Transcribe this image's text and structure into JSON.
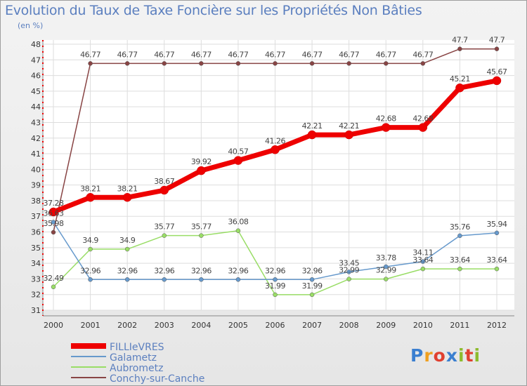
{
  "title": "Evolution du Taux de Taxe Foncière sur les Propriétés Non Bâties",
  "subtitle": "(en %)",
  "logo": [
    "P",
    "r",
    "o",
    "x",
    "i",
    "t",
    "i"
  ],
  "chart_data": {
    "type": "line",
    "x": [
      "2000",
      "2001",
      "2002",
      "2003",
      "2004",
      "2005",
      "2006",
      "2007",
      "2008",
      "2009",
      "2010",
      "2011",
      "2012"
    ],
    "ylim": [
      31,
      48
    ],
    "yticks": [
      31,
      32,
      33,
      34,
      35,
      36,
      37,
      38,
      39,
      40,
      41,
      42,
      43,
      44,
      45,
      46,
      47,
      48
    ],
    "grid": true,
    "legend_position": "bottom-left",
    "series": [
      {
        "name": "FILLIeVRES",
        "color": "#ee0000",
        "values": [
          37.28,
          38.21,
          38.21,
          38.67,
          39.92,
          40.57,
          41.26,
          42.21,
          42.21,
          42.68,
          42.68,
          45.21,
          45.67
        ],
        "labels": [
          "37.28",
          "38.21",
          "38.21",
          "38.67",
          "39.92",
          "40.57",
          "41.26",
          "42.21",
          "42.21",
          "42.68",
          "42.68",
          "45.21",
          "45.67"
        ]
      },
      {
        "name": "Galametz",
        "color": "#6699cc",
        "values": [
          36.63,
          32.96,
          32.96,
          32.96,
          32.96,
          32.96,
          32.96,
          32.96,
          33.45,
          33.78,
          34.11,
          35.76,
          35.94
        ],
        "labels": [
          "36.63",
          "32.96",
          "32.96",
          "32.96",
          "32.96",
          "32.96",
          "32.96",
          "32.96",
          "33.45",
          "33.78",
          "34.11",
          "35.76",
          "35.94"
        ]
      },
      {
        "name": "Aubrometz",
        "color": "#99dd66",
        "values": [
          32.49,
          34.9,
          34.9,
          35.77,
          35.77,
          36.08,
          31.99,
          31.99,
          32.99,
          32.99,
          33.64,
          33.64,
          33.64
        ],
        "labels": [
          "32.49",
          "34.9",
          "34.9",
          "35.77",
          "35.77",
          "36.08",
          "31.99",
          "31.99",
          "32.99",
          "32.99",
          "33.64",
          "33.64",
          "33.64"
        ]
      },
      {
        "name": "Conchy-sur-Canche",
        "color": "#884444",
        "values": [
          35.98,
          46.77,
          46.77,
          46.77,
          46.77,
          46.77,
          46.77,
          46.77,
          46.77,
          46.77,
          46.77,
          47.7,
          47.7
        ],
        "labels": [
          "35.98",
          "46.77",
          "46.77",
          "46.77",
          "46.77",
          "46.77",
          "46.77",
          "46.77",
          "46.77",
          "46.77",
          "46.77",
          "47.7",
          "47.7"
        ]
      }
    ]
  }
}
